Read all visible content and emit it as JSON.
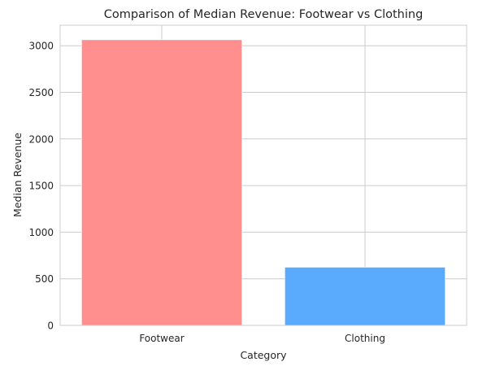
{
  "chart_data": {
    "type": "bar",
    "title": "Comparison of Median Revenue: Footwear vs Clothing",
    "xlabel": "Category",
    "ylabel": "Median Revenue",
    "categories": [
      "Footwear",
      "Clothing"
    ],
    "values": [
      3065,
      625
    ],
    "colors": [
      "#ff8f8f",
      "#5aabfe"
    ],
    "ylim": [
      0,
      3220
    ],
    "yticks": [
      0,
      500,
      1000,
      1500,
      2000,
      2500,
      3000
    ],
    "grid": true,
    "legend": "none"
  }
}
